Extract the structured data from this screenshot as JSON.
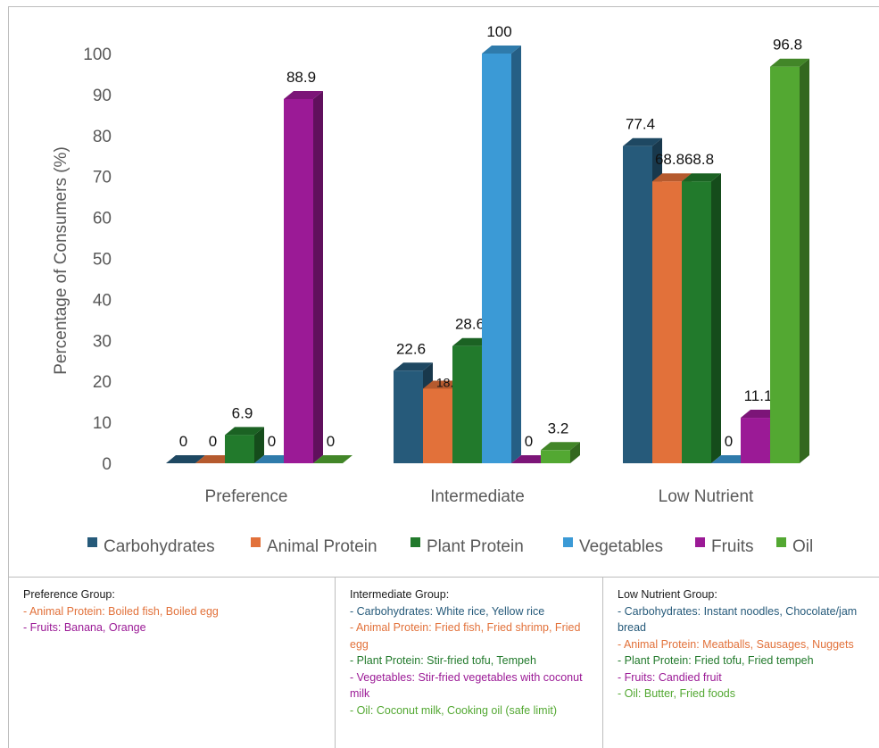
{
  "chart_data": {
    "type": "bar",
    "ylabel": "Percentage of Consumers (%)",
    "ylim": [
      0,
      100
    ],
    "yticks": [
      0,
      10,
      20,
      30,
      40,
      50,
      60,
      70,
      80,
      90,
      100
    ],
    "categories": [
      "Preference",
      "Intermediate",
      "Low Nutrient"
    ],
    "series": [
      {
        "name": "Carbohydrates",
        "color": "#265a7a",
        "values": [
          0,
          22.6,
          77.4
        ]
      },
      {
        "name": "Animal Protein",
        "color": "#e2713a",
        "values": [
          0,
          18.2,
          68.8
        ]
      },
      {
        "name": "Plant Protein",
        "color": "#227a2c",
        "values": [
          6.9,
          28.6,
          68.8
        ]
      },
      {
        "name": "Vegetables",
        "color": "#3b9ad6",
        "values": [
          0,
          100,
          0
        ]
      },
      {
        "name": "Fruits",
        "color": "#9b1a96",
        "values": [
          88.9,
          0,
          11.1
        ]
      },
      {
        "name": "Oil",
        "color": "#53a832",
        "values": [
          0,
          3.2,
          96.8
        ]
      }
    ],
    "data_labels": [
      [
        "0",
        "0",
        "6.9",
        "0",
        "88.9",
        "0"
      ],
      [
        "22.6",
        "18.2",
        "28.6",
        "100",
        "0",
        "3.2"
      ],
      [
        "77.4",
        "68.8",
        "68.8",
        "0",
        "11.1",
        "96.8"
      ]
    ],
    "legend_position": "bottom",
    "grid": false
  },
  "notes": [
    {
      "title": "Preference Group:",
      "lines": [
        {
          "text": "- Animal Protein: Boiled fish, Boiled egg",
          "color": "#e2713a"
        },
        {
          "text": "- Fruits: Banana, Orange",
          "color": "#9b1a96"
        }
      ]
    },
    {
      "title": "Intermediate Group:",
      "lines": [
        {
          "text": "- Carbohydrates: White rice, Yellow rice",
          "color": "#265a7a"
        },
        {
          "text": "- Animal Protein: Fried fish, Fried shrimp, Fried egg",
          "color": "#e2713a"
        },
        {
          "text": "- Plant Protein: Stir-fried tofu, Tempeh",
          "color": "#227a2c"
        },
        {
          "text": "- Vegetables: Stir-fried vegetables with coconut milk",
          "color": "#9b1a96"
        },
        {
          "text": "- Oil: Coconut milk, Cooking oil (safe limit)",
          "color": "#53a832"
        }
      ]
    },
    {
      "title": "Low Nutrient Group:",
      "lines": [
        {
          "text": "- Carbohydrates: Instant noodles, Chocolate/jam bread",
          "color": "#265a7a"
        },
        {
          "text": "- Animal Protein: Meatballs, Sausages, Nuggets",
          "color": "#e2713a"
        },
        {
          "text": "- Plant Protein: Fried tofu, Fried tempeh",
          "color": "#227a2c"
        },
        {
          "text": "- Fruits: Candied fruit",
          "color": "#9b1a96"
        },
        {
          "text": "- Oil: Butter, Fried foods",
          "color": "#53a832"
        }
      ]
    }
  ]
}
